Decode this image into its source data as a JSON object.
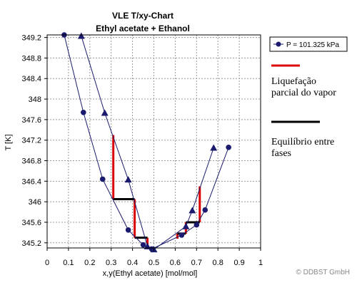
{
  "chart_data": {
    "type": "line",
    "title": [
      "VLE T/xy-Chart",
      "Ethyl acetate + Ethanol"
    ],
    "xlabel": "x,y(Ethyl acetate) [mol/mol]",
    "ylabel": "T [K]",
    "xlim": [
      0,
      1
    ],
    "ylim": [
      345.1,
      349.25
    ],
    "x_ticks": [
      0,
      0.1,
      0.2,
      0.3,
      0.4,
      0.5,
      0.6,
      0.7,
      0.8,
      0.9,
      1
    ],
    "x_tick_labels": [
      "0",
      "0.1",
      "0.2",
      "0.3",
      "0.4",
      "0.5",
      "0.6",
      "0.7",
      "0.8",
      "0.9",
      "1"
    ],
    "y_ticks": [
      345.2,
      345.6,
      346,
      346.4,
      346.8,
      347.2,
      347.6,
      348,
      348.4,
      348.8,
      349.2
    ],
    "y_tick_labels": [
      "345.2",
      "345.6",
      "346",
      "346.4",
      "346.8",
      "347.2",
      "347.6",
      "348",
      "348.4",
      "348.8",
      "349.2"
    ],
    "grid": true,
    "legend_position": "right",
    "series": [
      {
        "name": "P = 101.325 kPa",
        "marker": "circle",
        "color": "#1a1a6e",
        "points": [
          [
            0.08,
            349.25
          ],
          [
            0.17,
            347.74
          ],
          [
            0.26,
            346.44
          ],
          [
            0.38,
            345.45
          ],
          [
            0.45,
            345.16
          ],
          [
            0.49,
            345.08
          ],
          [
            0.63,
            345.35
          ],
          [
            0.7,
            345.55
          ],
          [
            0.74,
            345.84
          ],
          [
            0.85,
            347.06
          ]
        ]
      },
      {
        "marker": "triangle",
        "color": "#1a1a6e",
        "points": [
          [
            0.16,
            349.23
          ],
          [
            0.27,
            347.73
          ],
          [
            0.38,
            346.43
          ],
          [
            0.47,
            345.13
          ],
          [
            0.5,
            345.07
          ],
          [
            0.65,
            345.52
          ],
          [
            0.68,
            345.83
          ],
          [
            0.78,
            347.05
          ]
        ]
      }
    ],
    "annotations": {
      "red_label": [
        "Liquefação",
        "parcial do vapor"
      ],
      "black_label": [
        "Equilíbrio entre",
        "fases"
      ],
      "red_color": "#dd0000",
      "black_color": "#000000",
      "red_segments": [
        [
          [
            0.31,
            347.3
          ],
          [
            0.31,
            346.05
          ]
        ],
        [
          [
            0.41,
            346.05
          ],
          [
            0.41,
            345.3
          ]
        ],
        [
          [
            0.47,
            345.3
          ],
          [
            0.47,
            345.1
          ]
        ],
        [
          [
            0.61,
            345.38
          ],
          [
            0.61,
            345.28
          ]
        ],
        [
          [
            0.65,
            345.6
          ],
          [
            0.65,
            345.38
          ]
        ],
        [
          [
            0.715,
            346.3
          ],
          [
            0.715,
            345.6
          ]
        ]
      ],
      "black_segments": [
        [
          [
            0.31,
            346.05
          ],
          [
            0.41,
            346.05
          ]
        ],
        [
          [
            0.41,
            345.3
          ],
          [
            0.47,
            345.3
          ]
        ],
        [
          [
            0.47,
            345.1
          ],
          [
            0.49,
            345.1
          ]
        ],
        [
          [
            0.61,
            345.38
          ],
          [
            0.65,
            345.38
          ]
        ],
        [
          [
            0.65,
            345.6
          ],
          [
            0.715,
            345.6
          ]
        ]
      ]
    }
  },
  "copyright": "© DDBST GmbH"
}
